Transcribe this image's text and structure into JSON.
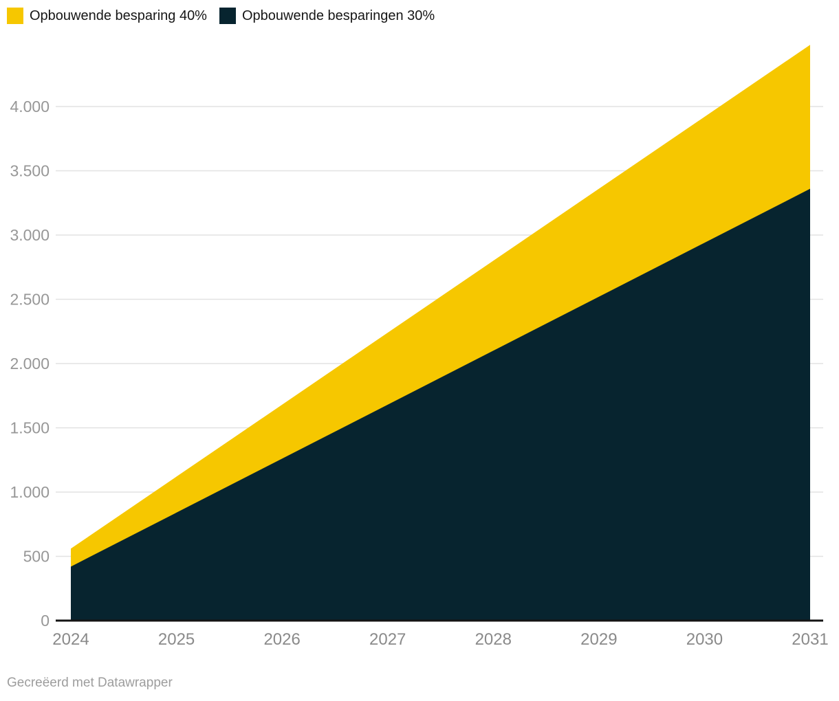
{
  "legend": {
    "items": [
      {
        "label": "Opbouwende besparing 40%",
        "color": "#F6C700"
      },
      {
        "label": "Opbouwende besparingen 30%",
        "color": "#07242F"
      }
    ]
  },
  "footer": {
    "credit": "Gecreëerd met Datawrapper"
  },
  "chart_data": {
    "type": "area",
    "title": "",
    "xlabel": "",
    "ylabel": "",
    "x": [
      2024,
      2025,
      2026,
      2027,
      2028,
      2029,
      2030,
      2031
    ],
    "x_tick_labels": [
      "2024",
      "2025",
      "2026",
      "2027",
      "2028",
      "2029",
      "2030",
      "2031"
    ],
    "series": [
      {
        "name": "Opbouwende besparing 40%",
        "color": "#F6C700",
        "values": [
          560,
          1120,
          1680,
          2240,
          2800,
          3360,
          3920,
          4480
        ]
      },
      {
        "name": "Opbouwende besparingen 30%",
        "color": "#07242F",
        "values": [
          420,
          840,
          1260,
          1680,
          2100,
          2520,
          2940,
          3360
        ]
      }
    ],
    "y_ticks": [
      {
        "value": 0,
        "label": "0"
      },
      {
        "value": 500,
        "label": "500"
      },
      {
        "value": 1000,
        "label": "1.000"
      },
      {
        "value": 1500,
        "label": "1.500"
      },
      {
        "value": 2000,
        "label": "2.000"
      },
      {
        "value": 2500,
        "label": "2.500"
      },
      {
        "value": 3000,
        "label": "3.000"
      },
      {
        "value": 3500,
        "label": "3.500"
      },
      {
        "value": 4000,
        "label": "4.000"
      }
    ],
    "ylim": [
      0,
      4480
    ],
    "grid": "horizontal",
    "legend_position": "top-left",
    "colors": {
      "grid": "#e2e2e2",
      "axis": "#141414",
      "y_tick_label": "#979797",
      "x_tick_label": "#8a8a8a",
      "legend_text": "#161616",
      "credit_text": "#9d9d9d"
    }
  }
}
